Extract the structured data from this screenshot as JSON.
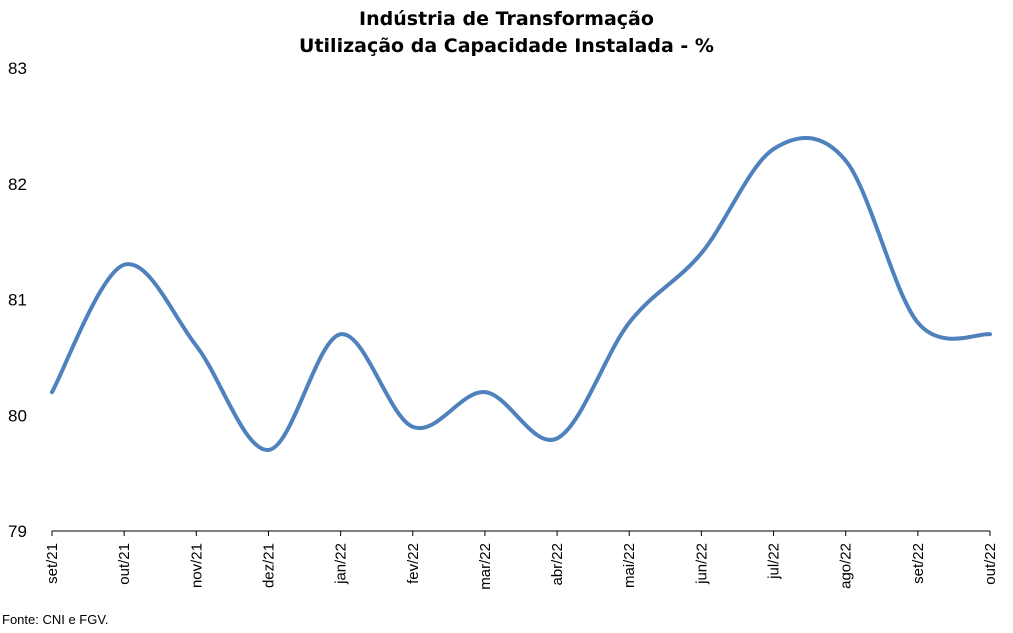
{
  "chart_data": {
    "type": "line",
    "title": "Indústria de Transformação",
    "subtitle": "Utilização da Capacidade Instalada - %",
    "xlabel": "",
    "ylabel": "",
    "categories": [
      "set/21",
      "out/21",
      "nov/21",
      "dez/21",
      "jan/22",
      "fev/22",
      "mar/22",
      "abr/22",
      "mai/22",
      "jun/22",
      "jul/22",
      "ago/22",
      "set/22",
      "out/22"
    ],
    "series": [
      {
        "values": [
          80.2,
          81.3,
          80.6,
          79.7,
          80.7,
          79.9,
          80.2,
          79.8,
          80.8,
          81.4,
          82.3,
          82.2,
          80.8,
          80.7
        ],
        "color": "#4f81bd"
      }
    ],
    "ylim": [
      79,
      83
    ],
    "yticks": [
      "79",
      "80",
      "81",
      "82",
      "83"
    ],
    "grid": false,
    "legend": "none",
    "smooth": true
  },
  "source_note": "Fonte: CNI e FGV."
}
